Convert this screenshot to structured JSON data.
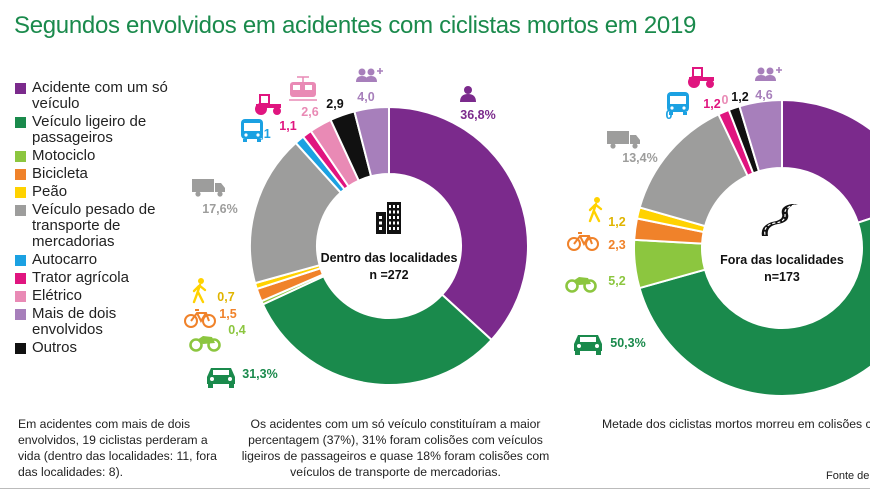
{
  "title": "Segundos envolvidos em acidentes com ciclistas mortos em 2019",
  "legend": [
    {
      "label": "Acidente com um só veículo",
      "color": "#7b2a8c"
    },
    {
      "label": "Veículo ligeiro de passageiros",
      "color": "#1a8a4c"
    },
    {
      "label": "Motociclo",
      "color": "#8cc63f"
    },
    {
      "label": "Bicicleta",
      "color": "#f0822a"
    },
    {
      "label": "Peão",
      "color": "#ffd200"
    },
    {
      "label": "Veículo pesado de transporte de mercadorias",
      "color": "#9d9d9c"
    },
    {
      "label": "Autocarro",
      "color": "#1ba1e2"
    },
    {
      "label": "Trator agrícola",
      "color": "#e0157f"
    },
    {
      "label": "Elétrico",
      "color": "#e98ab5"
    },
    {
      "label": "Mais de dois envolvidos",
      "color": "#a77fbb"
    },
    {
      "label": "Outros",
      "color": "#111111"
    }
  ],
  "chart_data": [
    {
      "type": "pie",
      "title": "Dentro das localidades",
      "total_label": "n =272",
      "slices": [
        {
          "category": "Acidente com um só veículo",
          "value": 36.8,
          "label": "36,8%",
          "color": "#7b2a8c",
          "icon": "person-icon"
        },
        {
          "category": "Veículo ligeiro de passageiros",
          "value": 31.3,
          "label": "31,3%",
          "color": "#1a8a4c",
          "icon": "car-icon"
        },
        {
          "category": "Motociclo",
          "value": 0.4,
          "label": "0,4",
          "color": "#8cc63f",
          "icon": "motorcycle-icon"
        },
        {
          "category": "Bicicleta",
          "value": 1.5,
          "label": "1,5",
          "color": "#f0822a",
          "icon": "bicycle-icon"
        },
        {
          "category": "Peão",
          "value": 0.7,
          "label": "0,7",
          "color": "#ffd200",
          "icon": "pedestrian-icon"
        },
        {
          "category": "Veículo pesado de transporte de mercadorias",
          "value": 17.6,
          "label": "17,6%",
          "color": "#9d9d9c",
          "icon": "truck-icon"
        },
        {
          "category": "Autocarro",
          "value": 1.1,
          "label": "1,1",
          "color": "#1ba1e2",
          "icon": "bus-icon"
        },
        {
          "category": "Trator agrícola",
          "value": 1.1,
          "label": "1,1",
          "color": "#e0157f",
          "icon": "tractor-icon"
        },
        {
          "category": "Elétrico",
          "value": 2.6,
          "label": "2,6",
          "color": "#e98ab5",
          "icon": "tram-icon"
        },
        {
          "category": "Outros",
          "value": 2.9,
          "label": "2,9",
          "color": "#111111",
          "icon": ""
        },
        {
          "category": "Mais de dois envolvidos",
          "value": 4.0,
          "label": "4,0",
          "color": "#a77fbb",
          "icon": "group-icon"
        }
      ]
    },
    {
      "type": "pie",
      "title": "Fora das localidades",
      "total_label": "n=173",
      "slices": [
        {
          "category": "Acidente com um só veículo",
          "value": 19.7,
          "label": "",
          "color": "#7b2a8c",
          "icon": ""
        },
        {
          "category": "Veículo ligeiro de passageiros",
          "value": 50.3,
          "label": "50,3%",
          "color": "#1a8a4c",
          "icon": "car-icon"
        },
        {
          "category": "Motociclo",
          "value": 5.2,
          "label": "5,2",
          "color": "#8cc63f",
          "icon": "motorcycle-icon"
        },
        {
          "category": "Bicicleta",
          "value": 2.3,
          "label": "2,3",
          "color": "#f0822a",
          "icon": "bicycle-icon"
        },
        {
          "category": "Peão",
          "value": 1.2,
          "label": "1,2",
          "color": "#ffd200",
          "icon": "pedestrian-icon"
        },
        {
          "category": "Veículo pesado de transporte de mercadorias",
          "value": 13.4,
          "label": "13,4%",
          "color": "#9d9d9c",
          "icon": "truck-icon"
        },
        {
          "category": "Autocarro",
          "value": 0,
          "label": "0",
          "color": "#1ba1e2",
          "icon": "bus-icon"
        },
        {
          "category": "Trator agrícola",
          "value": 1.2,
          "label": "1,2",
          "color": "#e0157f",
          "icon": "tractor-icon"
        },
        {
          "category": "Elétrico",
          "value": 0,
          "label": "0",
          "color": "#e98ab5",
          "icon": ""
        },
        {
          "category": "Outros",
          "value": 1.2,
          "label": "1,2",
          "color": "#111111",
          "icon": ""
        },
        {
          "category": "Mais de dois envolvidos",
          "value": 4.6,
          "label": "4,6",
          "color": "#a77fbb",
          "icon": "group-icon"
        }
      ]
    }
  ],
  "notes": {
    "left": "Em acidentes com mais de dois envolvidos, 19 ciclistas perderam a vida (dentro das localidades: 11, fora das localidades: 8).",
    "middle": "Os acidentes com um só veículo constituíram a maior percentagem (37%), 31% foram colisões com veículos ligeiros de passageiros e quase 18% foram colisões com veículos de transporte de mercadorias.",
    "right": "Metade dos ciclistas mortos morreu em colisões com veículos ligeiros de passageiros.",
    "source": "Fonte de dados"
  }
}
